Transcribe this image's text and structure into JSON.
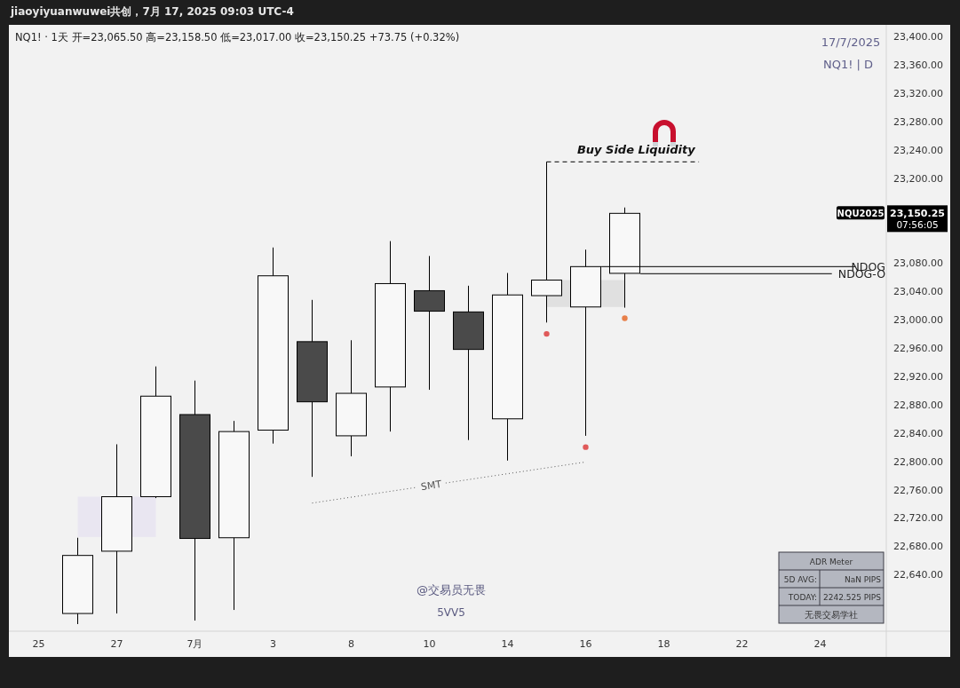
{
  "chart_data": {
    "type": "candlestick",
    "title": "jiaoyiyuanwuwei共创，7月 17, 2025 09:03 UTC-4",
    "subtitle": "NQ1! · 1天 开=23,065.50 高=23,158.50 低=23,017.00 收=23,150.25 +73.75 (+0.32%)",
    "categories": [
      "25",
      null,
      "27",
      null,
      "7月",
      null,
      "3",
      null,
      "8",
      null,
      "10",
      null,
      "14",
      null,
      "16",
      null,
      "18",
      null,
      "22",
      null,
      "24"
    ],
    "ohlc": [
      null,
      [
        22585,
        22692,
        22570,
        22667
      ],
      [
        22673,
        22824,
        22585,
        22750
      ],
      [
        22750,
        22934,
        22748,
        22892
      ],
      [
        22866,
        22914,
        22575,
        22691
      ],
      [
        22692,
        22857,
        22590,
        22842
      ],
      [
        22844,
        23102,
        22825,
        23062
      ],
      [
        22969,
        23028,
        22778,
        22884
      ],
      [
        22836,
        22971,
        22807,
        22896
      ],
      [
        22905,
        23111,
        22842,
        23051
      ],
      [
        23041,
        23090,
        22901,
        23012
      ],
      [
        23011,
        23048,
        22830,
        22958
      ],
      [
        22860,
        23066,
        22801,
        23035
      ],
      [
        23034,
        23223,
        22996,
        23056
      ],
      [
        23018,
        23099,
        22836,
        23075
      ],
      [
        23065.5,
        23158.5,
        23017,
        23150.25
      ],
      null,
      null,
      null,
      null,
      null
    ],
    "series": [
      {
        "type": "scatter",
        "marker": "circle",
        "colors": [
          null,
          null,
          null,
          null,
          null,
          null,
          null,
          null,
          null,
          null,
          null,
          null,
          null,
          "#e05a5a",
          "#e05a5a",
          "#e8804a",
          null,
          null,
          null,
          null,
          null
        ],
        "values": [
          null,
          null,
          null,
          null,
          null,
          null,
          null,
          null,
          null,
          null,
          null,
          null,
          null,
          22980,
          22820,
          23002,
          null,
          null,
          null,
          null,
          null
        ]
      },
      {
        "type": "line",
        "name": "SMT",
        "color": "#555555",
        "line_style": "dotted",
        "values": [
          null,
          null,
          null,
          null,
          null,
          null,
          null,
          22741,
          null,
          null,
          null,
          null,
          null,
          null,
          22799,
          null,
          null,
          null,
          null,
          null,
          null
        ]
      }
    ],
    "ylim": [
      22560,
      23414
    ],
    "yticks": [
      {
        "value": 22640,
        "label": "22,640.00"
      },
      {
        "value": 22680,
        "label": "22,680.00"
      },
      {
        "value": 22720,
        "label": "22,720.00"
      },
      {
        "value": 22760,
        "label": "22,760.00"
      },
      {
        "value": 22800,
        "label": "22,800.00"
      },
      {
        "value": 22840,
        "label": "22,840.00"
      },
      {
        "value": 22880,
        "label": "22,880.00"
      },
      {
        "value": 22920,
        "label": "22,920.00"
      },
      {
        "value": 22960,
        "label": "22,960.00"
      },
      {
        "value": 23000,
        "label": "23,000.00"
      },
      {
        "value": 23040,
        "label": "23,040.00"
      },
      {
        "value": 23080,
        "label": "23,080.00"
      },
      {
        "value": 23200,
        "label": "23,200.00"
      },
      {
        "value": 23240,
        "label": "23,240.00"
      },
      {
        "value": 23280,
        "label": "23,280.00"
      },
      {
        "value": 23320,
        "label": "23,320.00"
      },
      {
        "value": 23360,
        "label": "23,360.00"
      },
      {
        "value": 23400,
        "label": "23,400.00"
      }
    ],
    "ref_lines": [
      {
        "axis": "y",
        "value": 23223,
        "label": "Buy Side Liquidity",
        "line_style": "dashed",
        "color": "#000000"
      },
      {
        "axis": "y",
        "value": 23075,
        "label": "NDOG",
        "color": "#000000"
      },
      {
        "axis": "y",
        "value": 23065,
        "label": "NDOG-O",
        "color": "#000000"
      }
    ],
    "bands": [
      {
        "axis": "y",
        "from": 22693,
        "to": 22750,
        "color": "#e9e6f1"
      },
      {
        "axis": "y",
        "from": 23018,
        "to": 23056,
        "color": "#e0e0e0"
      }
    ],
    "annotations": [
      "17/7/2025",
      "NQ1! | D",
      "@交易员无畏",
      "5VV5",
      "NQU2025",
      "23,150.25",
      "07:56:05",
      "ADR Meter",
      "5D AVG:",
      "NaN PIPS",
      "TODAY:",
      "2242.525 PIPS",
      "无畏交易学社"
    ]
  }
}
